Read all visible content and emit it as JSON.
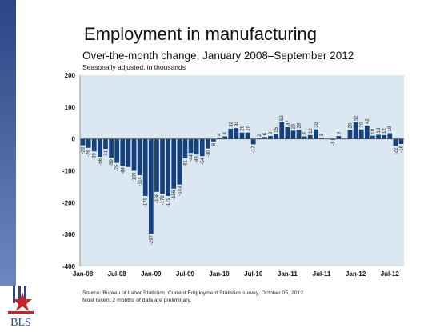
{
  "slide": {
    "title": "Employment in manufacturing",
    "source_line1": "Source: Bureau of Labor Statistics, Current Employment Statistics survey, October 05, 2012.",
    "source_line2": "Most recent 2 months of data are preliminary.",
    "logo_text": "BLS"
  },
  "colors": {
    "sidebar_top": "#2b4585",
    "sidebar_bottom": "#6d87bf",
    "plot_background": "#dbe8f2",
    "bar": "#16417c",
    "logo_red": "#c0282d",
    "logo_blue": "#2b4585"
  },
  "chart_data": {
    "type": "bar",
    "title": "",
    "subtitle": "Over-the-month change, January 2008–September 2012",
    "unit_note": "Seasonally adjusted, in thousands",
    "ylim": [
      -400,
      200
    ],
    "yticks": [
      200,
      100,
      0,
      -100,
      -200,
      -300,
      -400
    ],
    "grid": false,
    "legend": "none",
    "xtick_labels": [
      "Jan-08",
      "Jul-08",
      "Jan-09",
      "Jul-09",
      "Jan-10",
      "Jul-10",
      "Jan-11",
      "Jul-11",
      "Jan-12",
      "Jul-12"
    ],
    "categories": [
      "Jan-08",
      "Feb-08",
      "Mar-08",
      "Apr-08",
      "May-08",
      "Jun-08",
      "Jul-08",
      "Aug-08",
      "Sep-08",
      "Oct-08",
      "Nov-08",
      "Dec-08",
      "Jan-09",
      "Feb-09",
      "Mar-09",
      "Apr-09",
      "May-09",
      "Jun-09",
      "Jul-09",
      "Aug-09",
      "Sep-09",
      "Oct-09",
      "Nov-09",
      "Dec-09",
      "Jan-10",
      "Feb-10",
      "Mar-10",
      "Apr-10",
      "May-10",
      "Jun-10",
      "Jul-10",
      "Aug-10",
      "Sep-10",
      "Oct-10",
      "Nov-10",
      "Dec-10",
      "Jan-11",
      "Feb-11",
      "Mar-11",
      "Apr-11",
      "May-11",
      "Jun-11",
      "Jul-11",
      "Aug-11",
      "Sep-11",
      "Oct-11",
      "Nov-11",
      "Dec-11",
      "Jan-12",
      "Feb-12",
      "Mar-12",
      "Apr-12",
      "May-12",
      "Jun-12",
      "Jul-12",
      "Aug-12",
      "Sep-12"
    ],
    "values": [
      -20,
      -28,
      -39,
      -56,
      -31,
      -59,
      -75,
      -84,
      -88,
      -100,
      -114,
      -179,
      -297,
      -166,
      -172,
      -179,
      -156,
      -143,
      -61,
      -44,
      -49,
      -54,
      -30,
      -8,
      4,
      8,
      32,
      34,
      20,
      20,
      -17,
      2,
      6,
      9,
      15,
      52,
      37,
      26,
      28,
      8,
      12,
      30,
      3,
      0,
      -3,
      9,
      0,
      28,
      52,
      30,
      42,
      10,
      13,
      12,
      18,
      -22,
      -16
    ],
    "data_labels": [
      "-20",
      "-28",
      "-39",
      "-56",
      "-31",
      "-59",
      "-75",
      "-84",
      "",
      "-100",
      "-114",
      "-179",
      "-297",
      "-166",
      "-172",
      "-179",
      "-156",
      "-143",
      "-61",
      "-44",
      "-49",
      "-54",
      "-30",
      "-8",
      "4",
      "8",
      "32",
      "34",
      "20",
      "20",
      "-17",
      "2",
      "6",
      "9",
      "15",
      "52",
      "37",
      "26",
      "28",
      "8",
      "12",
      "30",
      "3",
      "",
      "-3",
      "9",
      "",
      "28",
      "52",
      "30",
      "42",
      "10",
      "13",
      "12",
      "18",
      "-22",
      "-16"
    ]
  }
}
